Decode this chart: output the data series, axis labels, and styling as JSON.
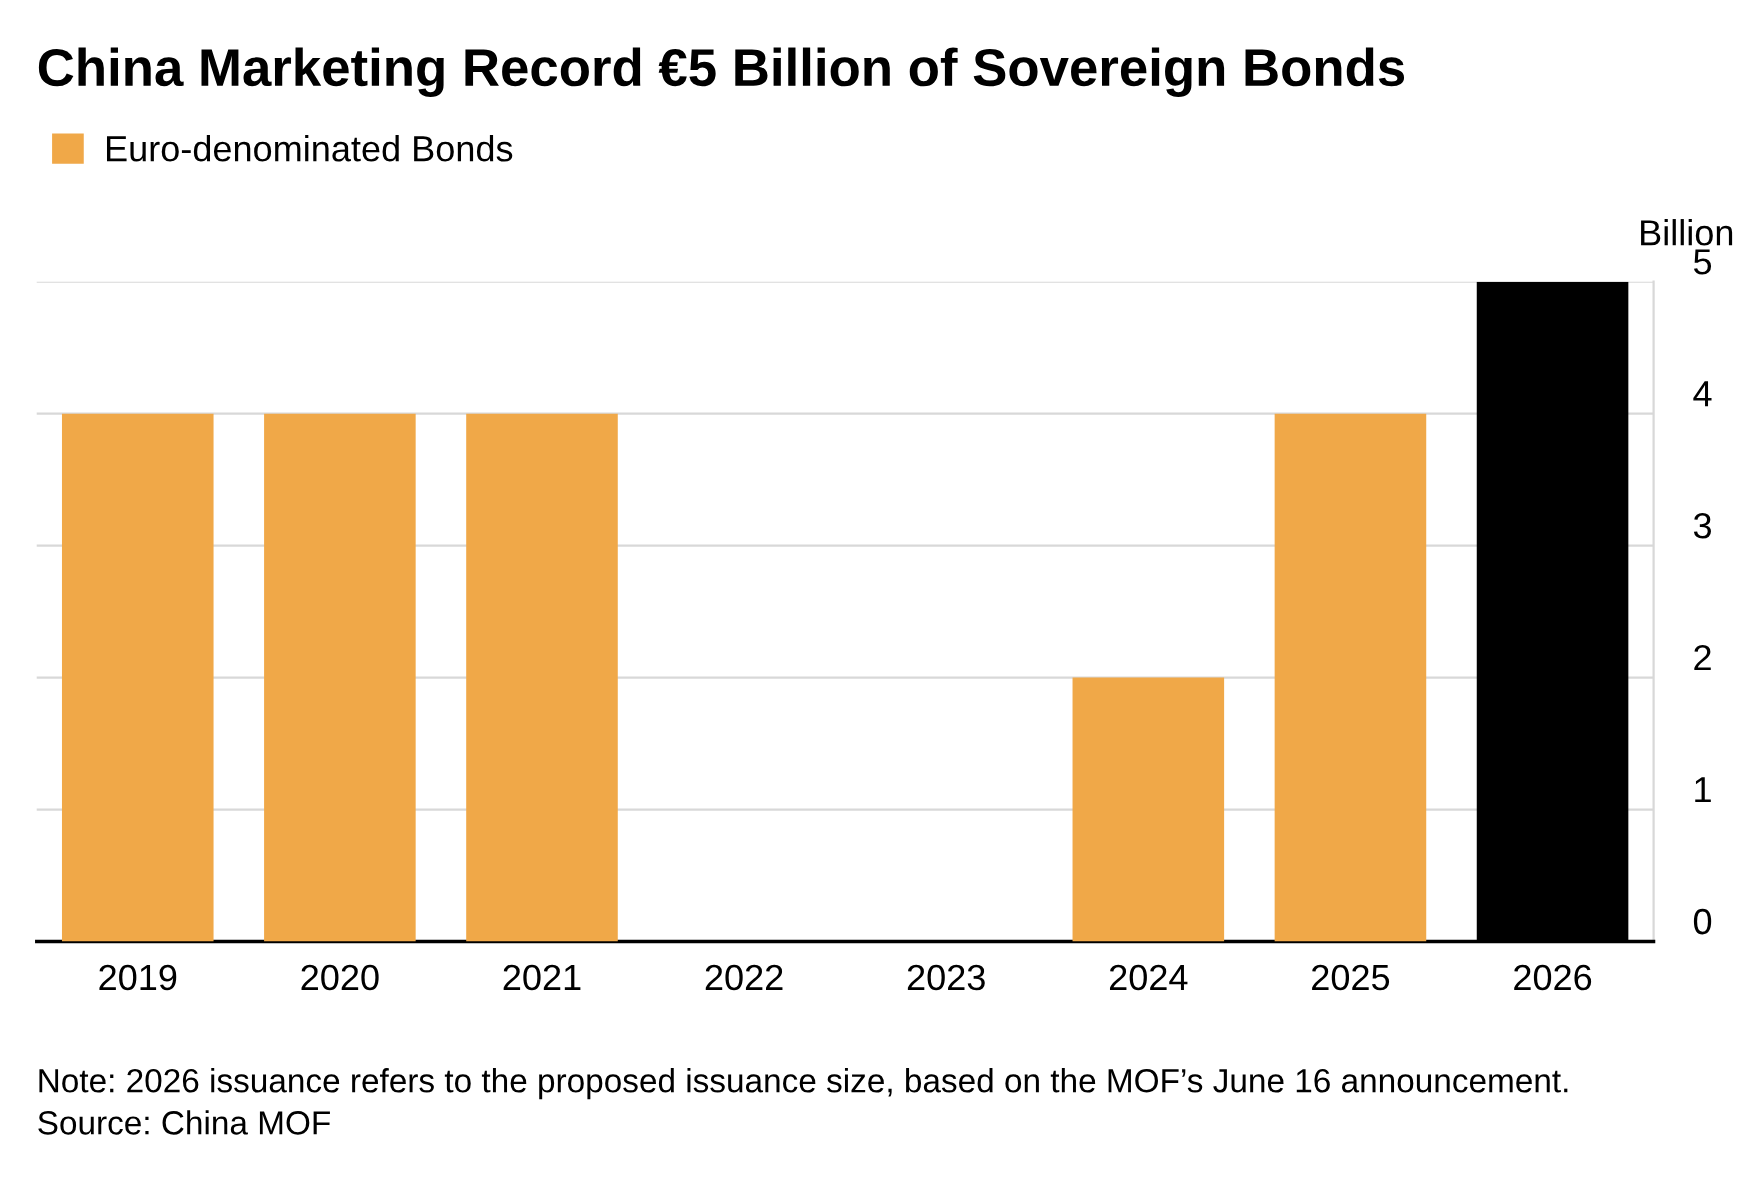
{
  "chart_data": {
    "type": "bar",
    "title": "China Marketing Record €5 Billion of Sovereign Bonds",
    "categories": [
      "2019",
      "2020",
      "2021",
      "2022",
      "2023",
      "2024",
      "2025",
      "2026"
    ],
    "series": [
      {
        "name": "Euro-denominated Bonds",
        "color": "#f0a848",
        "values": [
          4,
          4,
          4,
          0,
          0,
          2,
          4,
          5
        ],
        "colors": [
          "#f0a848",
          "#f0a848",
          "#f0a848",
          "#f0a848",
          "#f0a848",
          "#f0a848",
          "#f0a848",
          "#000000"
        ]
      }
    ],
    "ylabel": "Billion",
    "ylim": [
      0,
      5
    ],
    "yticks": [
      0,
      1,
      2,
      3,
      4,
      5
    ],
    "grid": "y",
    "legend": "top left",
    "annotations": [
      "Note: 2026 issuance refers to the proposed issuance size, based on the MOF’s June 16 announcement.",
      "Source: China MOF"
    ]
  }
}
